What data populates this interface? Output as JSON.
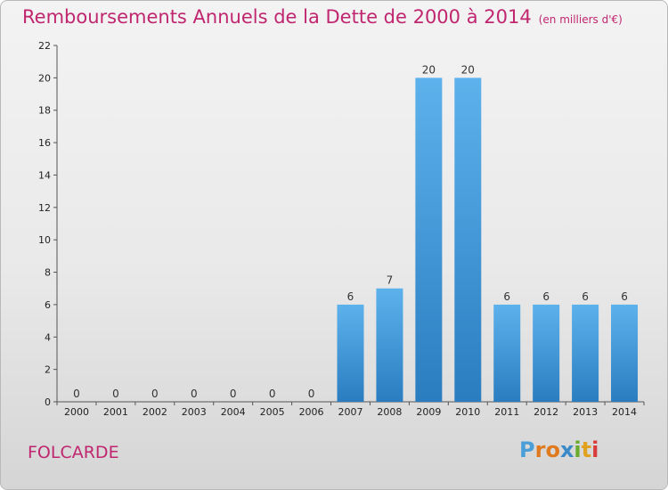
{
  "title": "Remboursements Annuels de la Dette de 2000 à 2014",
  "unit": "(en milliers d'€)",
  "commune": "FOLCARDE",
  "logo": {
    "text": "Proxiti",
    "letter_colors": [
      "#4a9fd8",
      "#e07a1e",
      "#e07a1e",
      "#3b8ac8",
      "#6aab2e",
      "#e0a21e",
      "#d93a3a"
    ]
  },
  "colors": {
    "title": "#c0266f",
    "bar_top": "#5db2ec",
    "bar_bottom": "#2a7dc0"
  },
  "chart_data": {
    "type": "bar",
    "title": "Remboursements Annuels de la Dette de 2000 à 2014",
    "xlabel": "",
    "ylabel": "",
    "categories": [
      "2000",
      "2001",
      "2002",
      "2003",
      "2004",
      "2005",
      "2006",
      "2007",
      "2008",
      "2009",
      "2010",
      "2011",
      "2012",
      "2013",
      "2014"
    ],
    "values": [
      0,
      0,
      0,
      0,
      0,
      0,
      0,
      6,
      7,
      20,
      20,
      6,
      6,
      6,
      6
    ],
    "ylim": [
      0,
      22
    ],
    "yticks": [
      0,
      2,
      4,
      6,
      8,
      10,
      12,
      14,
      16,
      18,
      20,
      22
    ],
    "grid": false,
    "legend": "none"
  }
}
